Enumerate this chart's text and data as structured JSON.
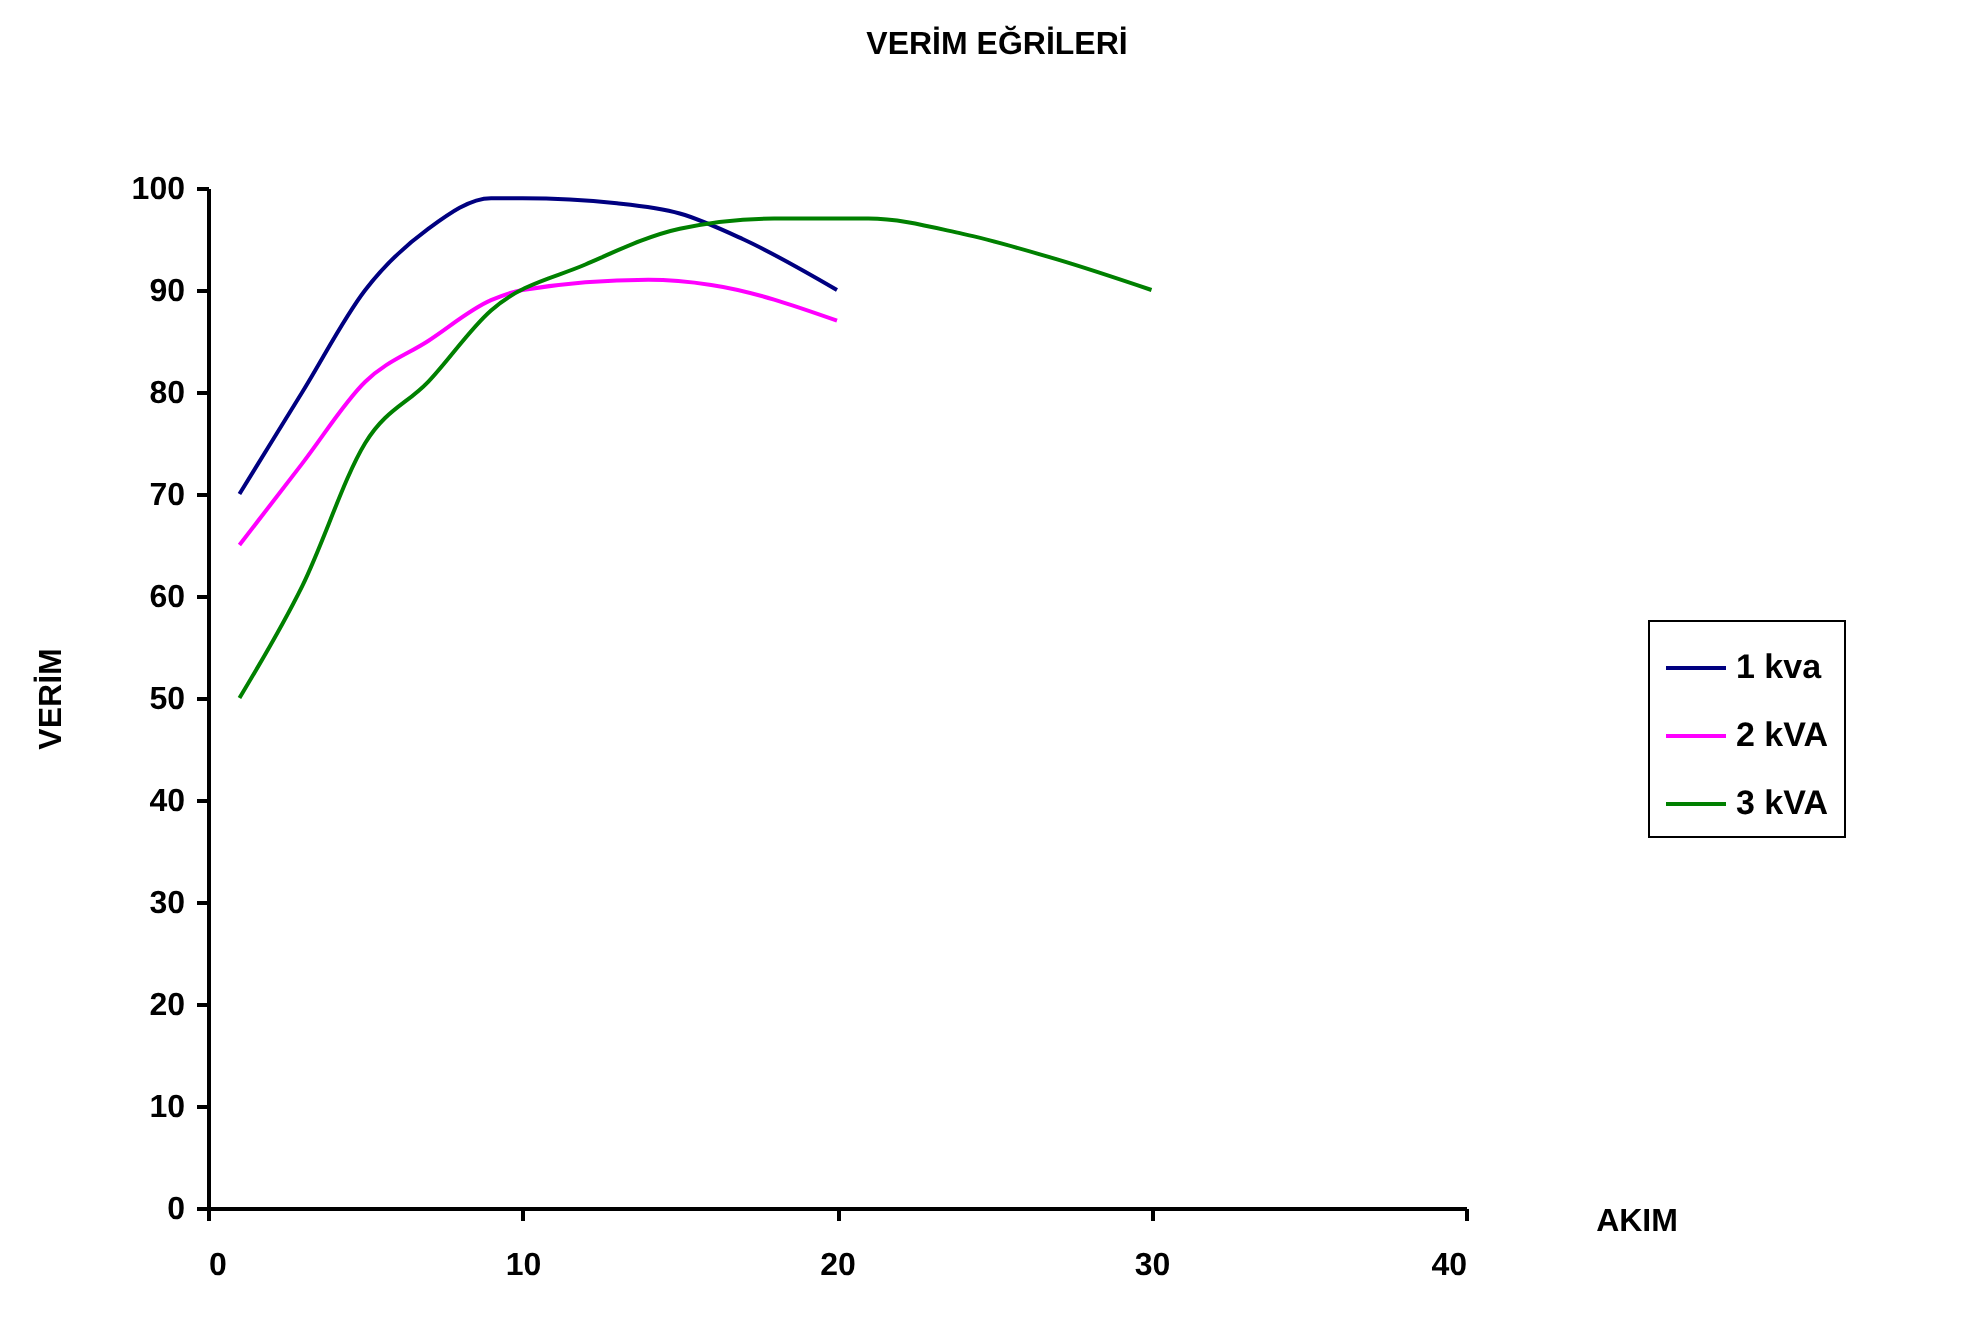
{
  "chart_data": {
    "type": "line",
    "title": "VERİM EĞRİLERİ",
    "xlabel": "AKIM",
    "ylabel": "VERİM",
    "xlim": [
      0,
      40
    ],
    "xticks": [
      0,
      10,
      20,
      30,
      40
    ],
    "ylim": [
      0,
      100
    ],
    "yticks": [
      0,
      10,
      20,
      30,
      40,
      50,
      60,
      70,
      80,
      90,
      100
    ],
    "grid": false,
    "legend": "right",
    "series": [
      {
        "name": "1 kva",
        "color": "#000080",
        "x": [
          1,
          3,
          5,
          7,
          9,
          10,
          13,
          15,
          17,
          20
        ],
        "values": [
          70,
          80,
          90,
          96,
          99,
          99,
          98.5,
          97.5,
          95,
          90
        ]
      },
      {
        "name": "2 kVA",
        "color": "#ff00ff",
        "x": [
          1,
          3,
          5,
          7,
          9,
          10,
          14,
          16,
          20
        ],
        "values": [
          65,
          73,
          81,
          85,
          89,
          90,
          91,
          90.5,
          87
        ]
      },
      {
        "name": "3 kVA",
        "color": "#008000",
        "x": [
          1,
          3,
          5,
          7,
          9,
          12,
          15,
          18,
          21,
          24,
          27,
          30
        ],
        "values": [
          50,
          61,
          75,
          81,
          88,
          92.5,
          96,
          97,
          97,
          95.5,
          93,
          90
        ]
      }
    ]
  }
}
